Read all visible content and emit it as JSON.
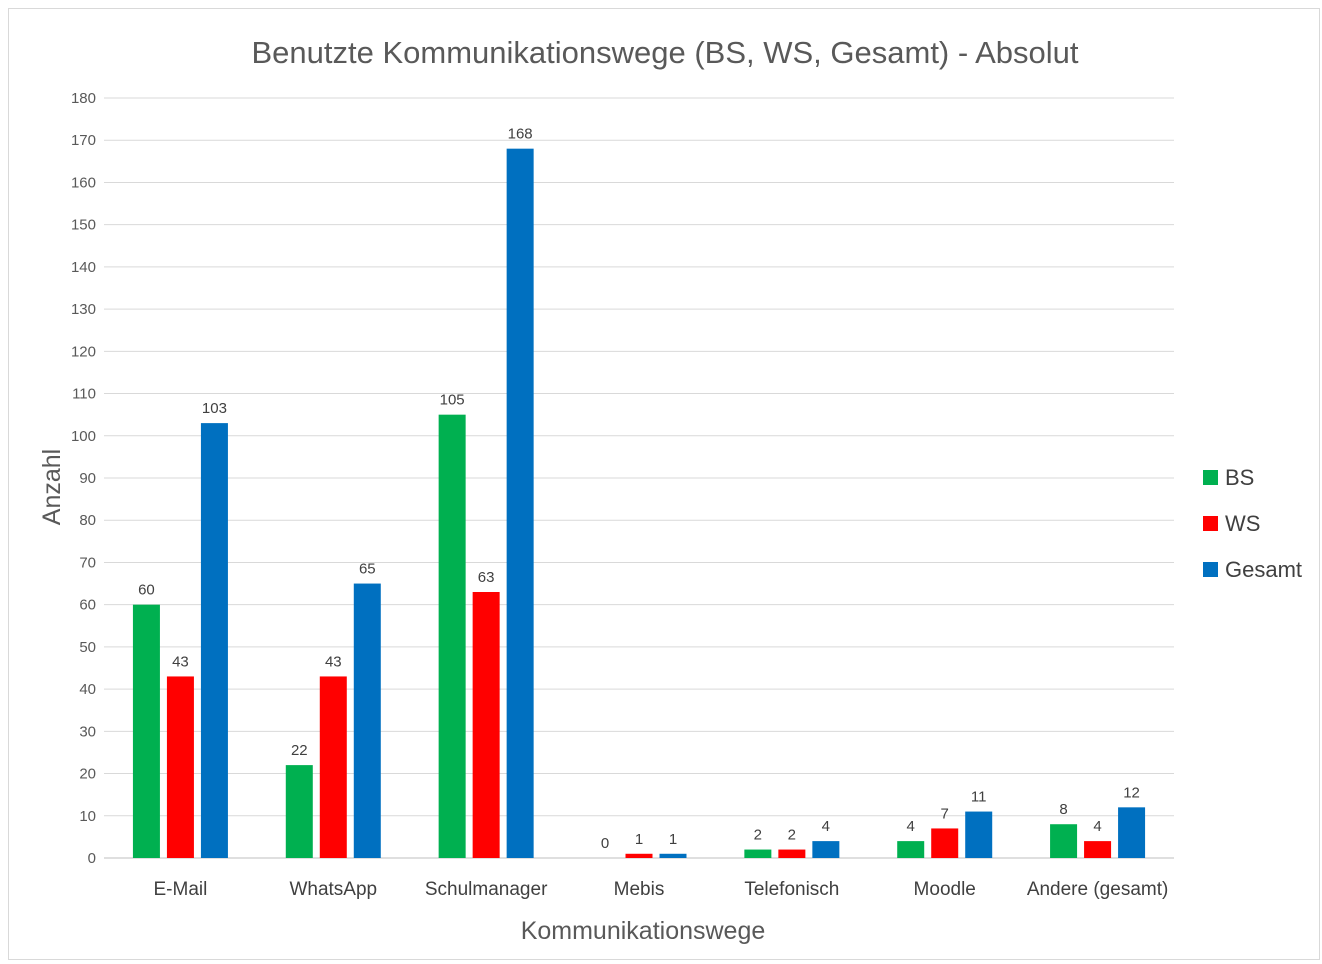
{
  "chart_data": {
    "type": "bar",
    "title": "Benutzte Kommunikationswege (BS, WS, Gesamt) - Absolut",
    "xlabel": "Kommunikationswege",
    "ylabel": "Anzahl",
    "ylim": [
      0,
      180
    ],
    "ytick_step": 10,
    "yticks": [
      "0",
      "10",
      "20",
      "30",
      "40",
      "50",
      "60",
      "70",
      "80",
      "90",
      "100",
      "110",
      "120",
      "130",
      "140",
      "150",
      "160",
      "170",
      "180"
    ],
    "grid": true,
    "legend_position": "right",
    "categories": [
      "E-Mail",
      "WhatsApp",
      "Schulmanager",
      "Mebis",
      "Telefonisch",
      "Moodle",
      "Andere (gesamt)"
    ],
    "series": [
      {
        "name": "BS",
        "color": "#00b050",
        "values": [
          60,
          22,
          105,
          0,
          2,
          4,
          8
        ]
      },
      {
        "name": "WS",
        "color": "#ff0000",
        "values": [
          43,
          43,
          63,
          1,
          2,
          7,
          4
        ]
      },
      {
        "name": "Gesamt",
        "color": "#0070c0",
        "values": [
          103,
          65,
          168,
          1,
          4,
          11,
          12
        ]
      }
    ]
  }
}
